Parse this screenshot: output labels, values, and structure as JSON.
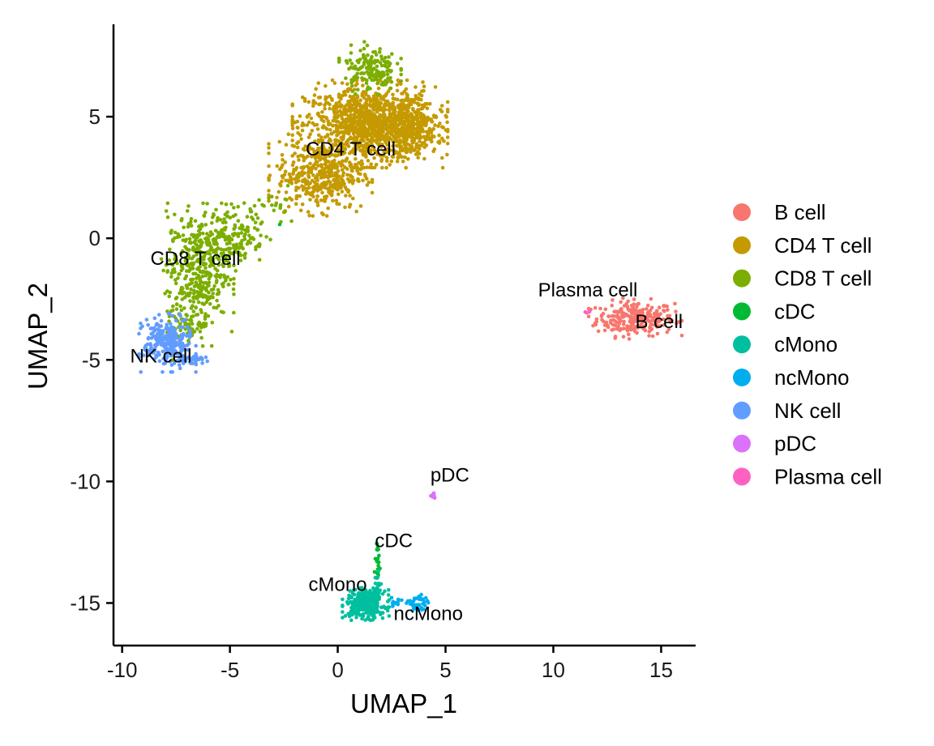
{
  "chart_data": {
    "type": "scatter",
    "title": "",
    "xlabel": "UMAP_1",
    "ylabel": "UMAP_2",
    "xlim": [
      -10.4,
      16.6
    ],
    "ylim": [
      -16.75,
      8.8
    ],
    "xticks": [
      -10,
      -5,
      0,
      5,
      10,
      15
    ],
    "xtick_labels": [
      "-10",
      "-5",
      "0",
      "5",
      "10",
      "15"
    ],
    "yticks": [
      5,
      0,
      -5,
      -10,
      -15
    ],
    "ytick_labels": [
      "5",
      "0",
      "-5",
      "-10",
      "-15"
    ],
    "grid": false,
    "legend_position": "right",
    "series": [
      {
        "name": "B cell",
        "color": "#F8766D",
        "clusters": [
          {
            "cx": 13.8,
            "cy": -3.3,
            "sx": 0.9,
            "sy": 0.35,
            "n": 260
          }
        ]
      },
      {
        "name": "CD4 T cell",
        "color": "#C49A00",
        "clusters": [
          {
            "cx": 1.5,
            "cy": 4.7,
            "sx": 1.5,
            "sy": 0.75,
            "n": 1100
          },
          {
            "cx": -0.8,
            "cy": 2.6,
            "sx": 1.0,
            "sy": 0.7,
            "n": 420
          },
          {
            "cx": 3.4,
            "cy": 4.6,
            "sx": 0.6,
            "sy": 0.6,
            "n": 220
          }
        ]
      },
      {
        "name": "CD8 T cell",
        "color": "#7CAE00",
        "clusters": [
          {
            "cx": -6.5,
            "cy": -1.2,
            "sx": 0.7,
            "sy": 1.1,
            "n": 380
          },
          {
            "cx": -4.8,
            "cy": 0.1,
            "sx": 0.7,
            "sy": 0.6,
            "n": 160
          },
          {
            "cx": 1.5,
            "cy": 7.0,
            "sx": 0.6,
            "sy": 0.45,
            "n": 160
          },
          {
            "cx": -7.0,
            "cy": -3.6,
            "sx": 0.5,
            "sy": 0.6,
            "n": 90
          },
          {
            "cx": -2.8,
            "cy": 1.2,
            "sx": 0.6,
            "sy": 0.4,
            "n": 25
          }
        ]
      },
      {
        "name": "cDC",
        "color": "#00B934",
        "clusters": [
          {
            "cx": 1.85,
            "cy": -13.4,
            "sx": 0.07,
            "sy": 0.35,
            "n": 22
          },
          {
            "cx": -2.7,
            "cy": 0.5,
            "sx": 0.05,
            "sy": 0.05,
            "n": 1
          }
        ]
      },
      {
        "name": "cMono",
        "color": "#00BF9E",
        "clusters": [
          {
            "cx": 1.3,
            "cy": -15.05,
            "sx": 0.45,
            "sy": 0.28,
            "n": 320
          },
          {
            "cx": 1.8,
            "cy": -14.4,
            "sx": 0.12,
            "sy": 0.3,
            "n": 25
          }
        ]
      },
      {
        "name": "ncMono",
        "color": "#00ADEF",
        "clusters": [
          {
            "cx": 3.7,
            "cy": -15.1,
            "sx": 0.22,
            "sy": 0.22,
            "n": 45
          },
          {
            "cx": 2.7,
            "cy": -14.95,
            "sx": 0.3,
            "sy": 0.1,
            "n": 12
          }
        ]
      },
      {
        "name": "NK cell",
        "color": "#619CFF",
        "clusters": [
          {
            "cx": -7.9,
            "cy": -4.3,
            "sx": 0.55,
            "sy": 0.5,
            "n": 260
          },
          {
            "cx": -6.8,
            "cy": -5.0,
            "sx": 0.4,
            "sy": 0.08,
            "n": 40
          }
        ]
      },
      {
        "name": "pDC",
        "color": "#DB72FB",
        "clusters": [
          {
            "cx": 4.5,
            "cy": -10.6,
            "sx": 0.08,
            "sy": 0.05,
            "n": 8
          }
        ]
      },
      {
        "name": "Plasma cell",
        "color": "#FF61C3",
        "clusters": [
          {
            "cx": 11.6,
            "cy": -3.05,
            "sx": 0.06,
            "sy": 0.04,
            "n": 4
          }
        ]
      }
    ],
    "cluster_labels": [
      {
        "text": "CD4 T cell",
        "x": 0.6,
        "y": 3.4
      },
      {
        "text": "CD8 T cell",
        "x": -6.6,
        "y": -1.1
      },
      {
        "text": "NK cell",
        "x": -8.2,
        "y": -5.1
      },
      {
        "text": "Plasma cell",
        "x": 11.6,
        "y": -2.4
      },
      {
        "text": "B cell",
        "x": 14.9,
        "y": -3.7
      },
      {
        "text": "pDC",
        "x": 5.2,
        "y": -10.0
      },
      {
        "text": "cDC",
        "x": 2.6,
        "y": -12.7
      },
      {
        "text": "cMono",
        "x": 0.0,
        "y": -14.5
      },
      {
        "text": "ncMono",
        "x": 4.2,
        "y": -15.7
      }
    ]
  }
}
